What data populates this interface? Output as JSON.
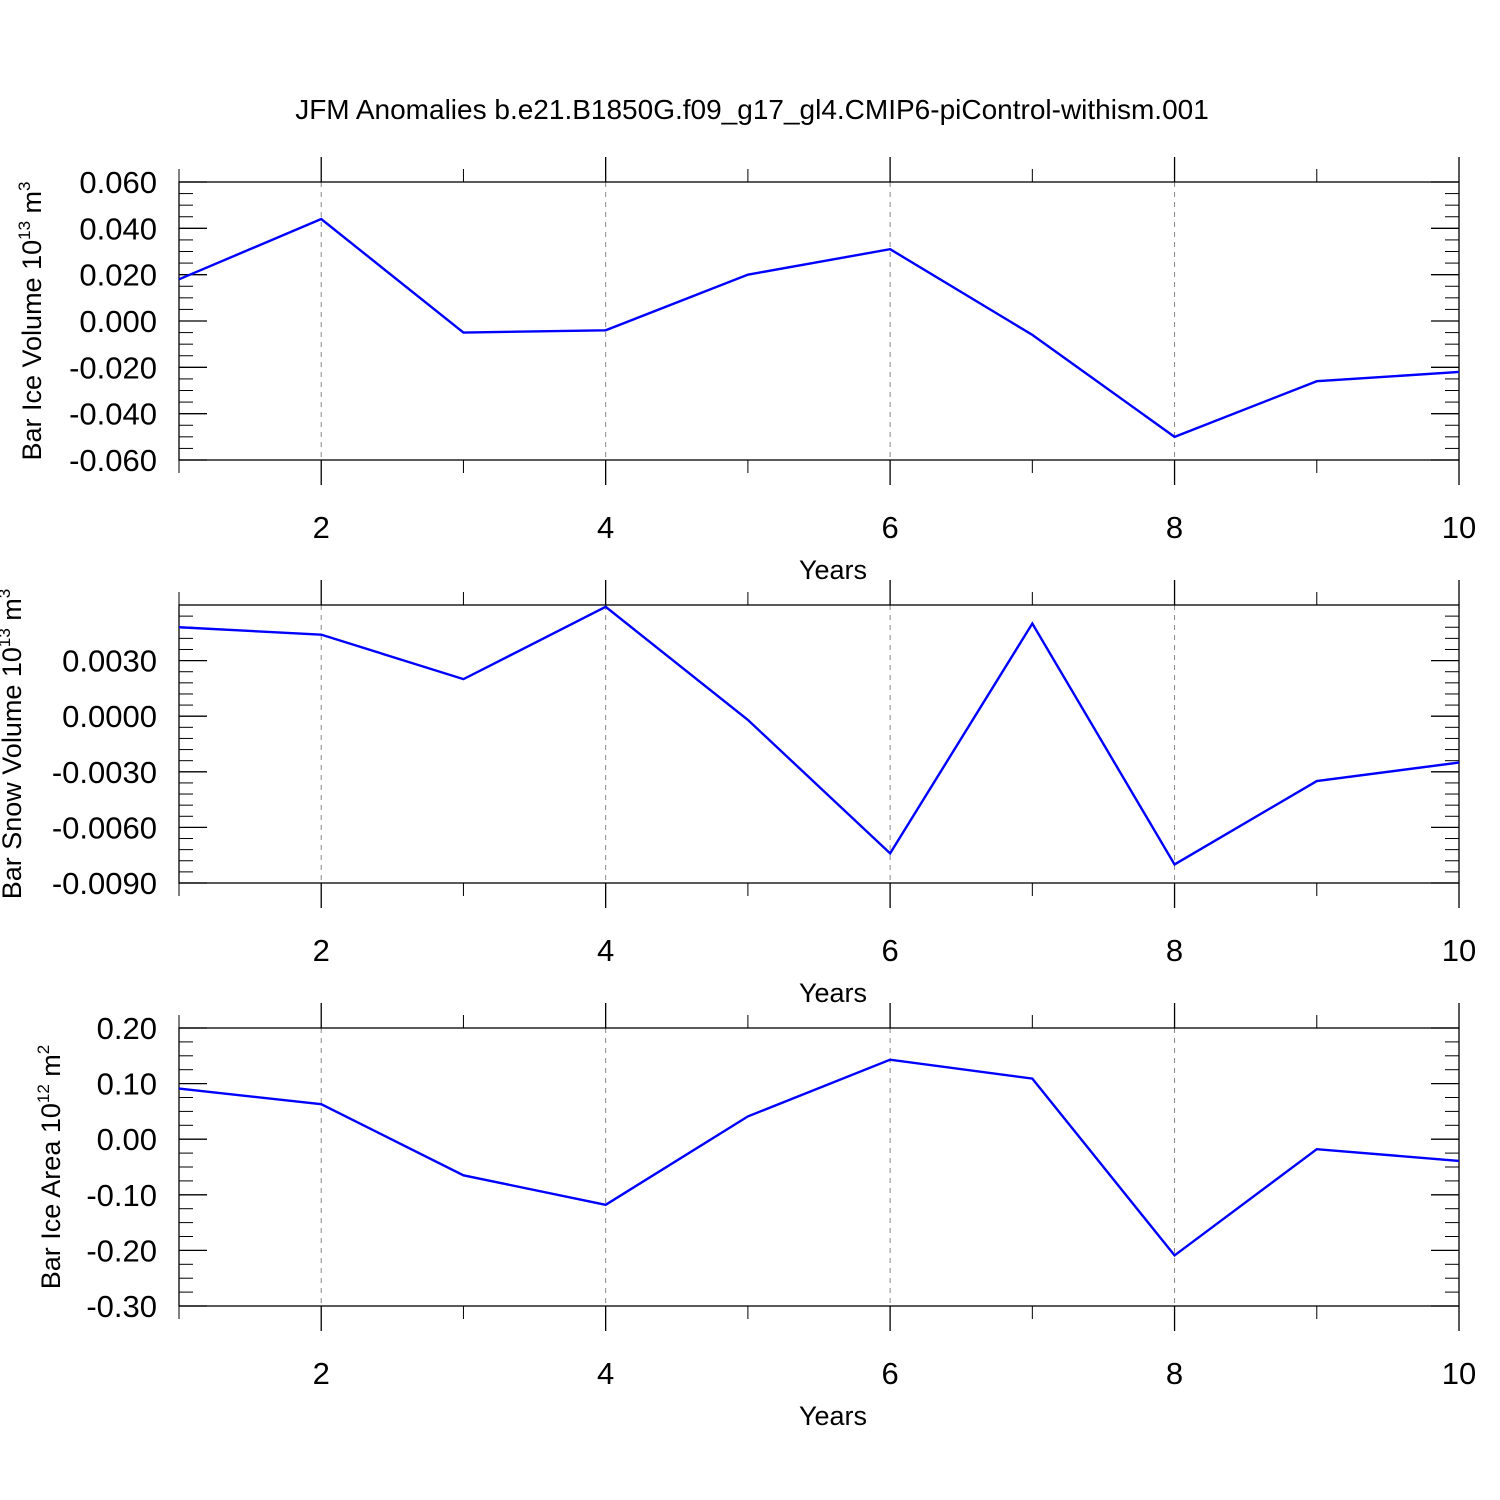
{
  "title": "JFM Anomalies b.e21.B1850G.f09_g17_gl4.CMIP6-piControl-withism.001",
  "chart_data": [
    {
      "type": "line",
      "ylabel": "Bar Ice Volume 10",
      "ylabel_exp": "13",
      "ylabel_unit": " m",
      "ylabel_unit_exp": "3",
      "xlabel": "Years",
      "xlim": [
        1,
        10
      ],
      "ylim": [
        -0.06,
        0.06
      ],
      "x": [
        1,
        2,
        3,
        4,
        5,
        6,
        7,
        8,
        9,
        10
      ],
      "xticks": [
        2,
        4,
        6,
        8,
        10
      ],
      "xtick_labels": [
        "2",
        "4",
        "6",
        "8",
        "10"
      ],
      "yticks": [
        0.06,
        0.04,
        0.02,
        0.0,
        -0.02,
        -0.04,
        -0.06
      ],
      "ytick_labels": [
        "0.060",
        "0.040",
        "0.020",
        "0.000",
        "-0.020",
        "-0.040",
        "-0.060"
      ],
      "grid": "vertical dashed at major x ticks",
      "series": [
        {
          "color": "#0000ff",
          "values": [
            0.018,
            0.044,
            -0.005,
            -0.004,
            0.02,
            0.031,
            -0.006,
            -0.05,
            -0.026,
            -0.022
          ]
        }
      ]
    },
    {
      "type": "line",
      "ylabel": "Bar Snow Volume 10",
      "ylabel_exp": "13",
      "ylabel_unit": " m",
      "ylabel_unit_exp": "3",
      "xlabel": "Years",
      "xlim": [
        1,
        10
      ],
      "ylim": [
        -0.009,
        0.006
      ],
      "x": [
        1,
        2,
        3,
        4,
        5,
        6,
        7,
        8,
        9,
        10
      ],
      "xticks": [
        2,
        4,
        6,
        8,
        10
      ],
      "xtick_labels": [
        "2",
        "4",
        "6",
        "8",
        "10"
      ],
      "yticks": [
        0.003,
        0.0,
        -0.003,
        -0.006,
        -0.009
      ],
      "ytick_labels": [
        "0.0030",
        "0.0000",
        "-0.0030",
        "-0.0060",
        "-0.0090"
      ],
      "grid": "vertical dashed at major x ticks",
      "series": [
        {
          "color": "#0000ff",
          "values": [
            0.0048,
            0.0044,
            0.002,
            0.0059,
            -0.0002,
            -0.0074,
            0.005,
            -0.008,
            -0.0035,
            -0.0025
          ]
        }
      ]
    },
    {
      "type": "line",
      "ylabel": "Bar Ice Area 10",
      "ylabel_exp": "12",
      "ylabel_unit": " m",
      "ylabel_unit_exp": "2",
      "xlabel": "Years",
      "xlim": [
        1,
        10
      ],
      "ylim": [
        -0.3,
        0.2
      ],
      "x": [
        1,
        2,
        3,
        4,
        5,
        6,
        7,
        8,
        9,
        10
      ],
      "xticks": [
        2,
        4,
        6,
        8,
        10
      ],
      "xtick_labels": [
        "2",
        "4",
        "6",
        "8",
        "10"
      ],
      "yticks": [
        0.2,
        0.1,
        0.0,
        -0.1,
        -0.2,
        -0.3
      ],
      "ytick_labels": [
        "0.20",
        "0.10",
        "0.00",
        "-0.10",
        "-0.20",
        "-0.30"
      ],
      "grid": "vertical dashed at major x ticks",
      "series": [
        {
          "color": "#0000ff",
          "values": [
            0.091,
            0.063,
            -0.065,
            -0.118,
            0.041,
            0.143,
            0.109,
            -0.209,
            -0.018,
            -0.039
          ]
        }
      ]
    }
  ]
}
